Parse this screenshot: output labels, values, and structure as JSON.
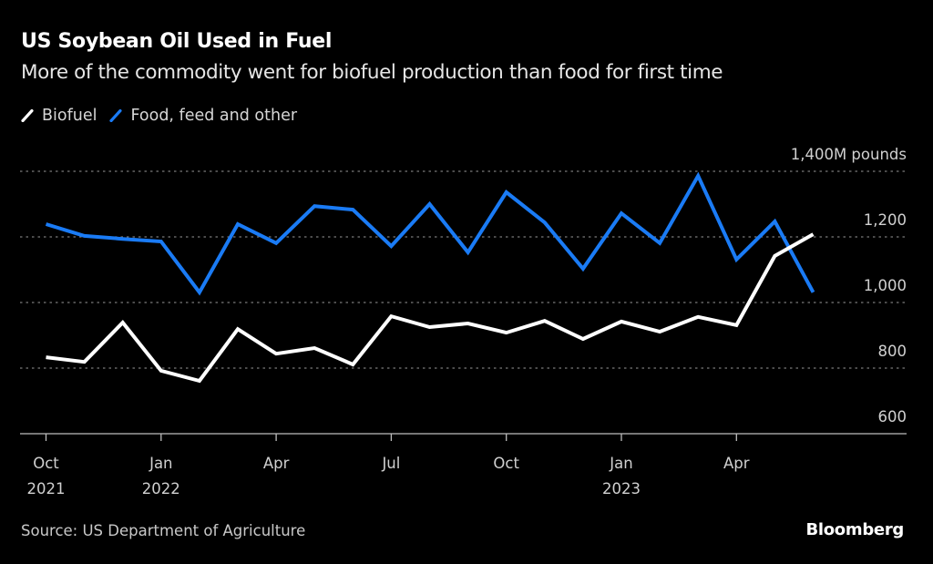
{
  "header": {
    "title": "US Soybean Oil Used in Fuel",
    "subtitle": "More of the commodity went for biofuel production than food for first time"
  },
  "legend": [
    {
      "label": "Biofuel",
      "color": "#ffffff",
      "icon": "diagonal-line-swatch"
    },
    {
      "label": "Food, feed and other",
      "color": "#1a7bf5",
      "icon": "diagonal-line-swatch"
    }
  ],
  "footer": {
    "source": "Source: US Department of Agriculture",
    "brand": "Bloomberg"
  },
  "chart_data": {
    "type": "line",
    "title": "US Soybean Oil Used in Fuel",
    "subtitle": "More of the commodity went for biofuel production than food for first time",
    "xlabel": "",
    "ylabel": "M pounds",
    "x": [
      "2021-10",
      "2021-11",
      "2021-12",
      "2022-01",
      "2022-02",
      "2022-03",
      "2022-04",
      "2022-05",
      "2022-06",
      "2022-07",
      "2022-08",
      "2022-09",
      "2022-10",
      "2022-11",
      "2022-12",
      "2023-01",
      "2023-02",
      "2023-03",
      "2023-04",
      "2023-05",
      "2023-06"
    ],
    "x_tick_labels": [
      {
        "x": "2021-10",
        "line1": "Oct",
        "line2": "2021"
      },
      {
        "x": "2022-01",
        "line1": "Jan",
        "line2": "2022"
      },
      {
        "x": "2022-04",
        "line1": "Apr",
        "line2": ""
      },
      {
        "x": "2022-07",
        "line1": "Jul",
        "line2": ""
      },
      {
        "x": "2022-10",
        "line1": "Oct",
        "line2": ""
      },
      {
        "x": "2023-01",
        "line1": "Jan",
        "line2": "2023"
      },
      {
        "x": "2023-04",
        "line1": "Apr",
        "line2": ""
      }
    ],
    "y_ticks": [
      600,
      800,
      1000,
      1200,
      1400
    ],
    "y_tick_labels": [
      "600",
      "800",
      "1,000",
      "1,200",
      "1,400M pounds"
    ],
    "ylim": [
      600,
      1400
    ],
    "grid": true,
    "legend_position": "top-left",
    "series": [
      {
        "name": "Biofuel",
        "color": "#ffffff",
        "values": [
          833,
          819,
          939,
          792,
          761,
          919,
          844,
          861,
          811,
          958,
          925,
          936,
          908,
          944,
          889,
          942,
          911,
          956,
          931,
          1142,
          1208
        ]
      },
      {
        "name": "Food, feed and other",
        "color": "#1a7bf5",
        "values": [
          1239,
          1203,
          1194,
          1186,
          1031,
          1239,
          1181,
          1294,
          1283,
          1172,
          1300,
          1153,
          1336,
          1244,
          1103,
          1272,
          1181,
          1386,
          1131,
          1247,
          1031
        ]
      }
    ]
  }
}
